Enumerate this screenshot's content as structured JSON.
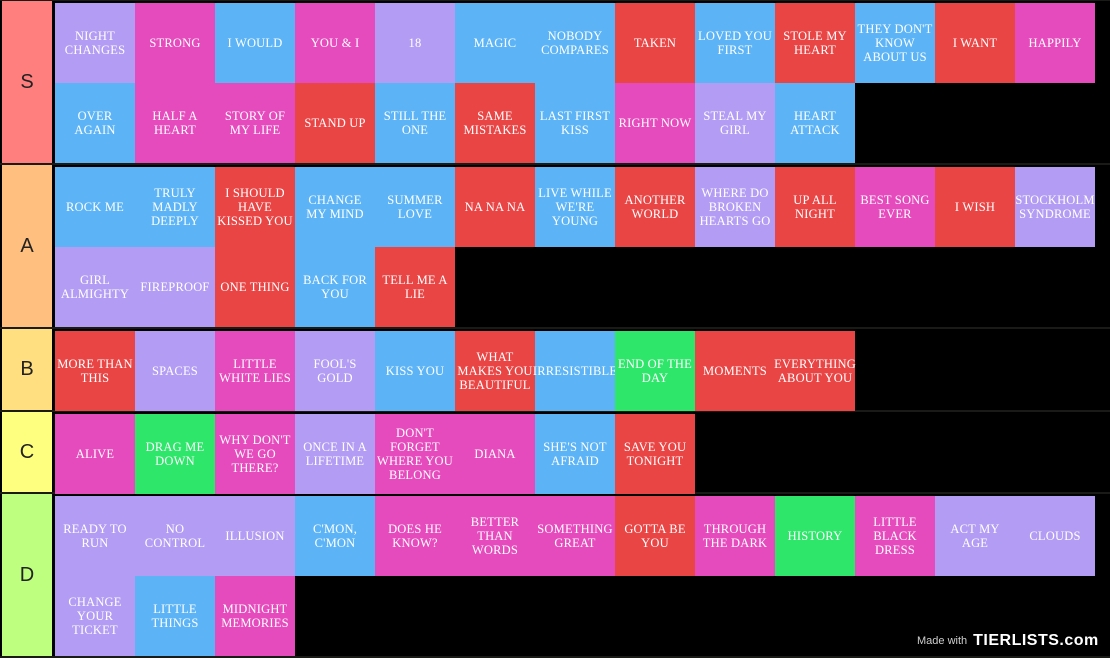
{
  "tiers": [
    {
      "label": "S",
      "color": "#ff7f7f",
      "items": [
        {
          "label": "NIGHT CHANGES",
          "color": "purple"
        },
        {
          "label": "STRONG",
          "color": "pink"
        },
        {
          "label": "I WOULD",
          "color": "blue"
        },
        {
          "label": "YOU & I",
          "color": "pink"
        },
        {
          "label": "18",
          "color": "purple"
        },
        {
          "label": "MAGIC",
          "color": "blue"
        },
        {
          "label": "NOBODY COMPARES",
          "color": "blue"
        },
        {
          "label": "TAKEN",
          "color": "red"
        },
        {
          "label": "LOVED YOU FIRST",
          "color": "blue"
        },
        {
          "label": "STOLE MY HEART",
          "color": "red"
        },
        {
          "label": "THEY DON'T KNOW ABOUT US",
          "color": "blue"
        },
        {
          "label": "I WANT",
          "color": "red"
        },
        {
          "label": "HAPPILY",
          "color": "pink"
        },
        {
          "label": "OVER AGAIN",
          "color": "blue"
        },
        {
          "label": "HALF A HEART",
          "color": "pink"
        },
        {
          "label": "STORY OF MY LIFE",
          "color": "pink"
        },
        {
          "label": "STAND UP",
          "color": "red"
        },
        {
          "label": "STILL THE ONE",
          "color": "blue"
        },
        {
          "label": "SAME MISTAKES",
          "color": "red"
        },
        {
          "label": "LAST FIRST KISS",
          "color": "blue"
        },
        {
          "label": "RIGHT NOW",
          "color": "pink"
        },
        {
          "label": "STEAL MY GIRL",
          "color": "purple"
        },
        {
          "label": "HEART ATTACK",
          "color": "blue"
        }
      ]
    },
    {
      "label": "A",
      "color": "#ffbf7f",
      "items": [
        {
          "label": "ROCK ME",
          "color": "blue"
        },
        {
          "label": "TRULY MADLY DEEPLY",
          "color": "blue"
        },
        {
          "label": "I SHOULD HAVE KISSED YOU",
          "color": "red"
        },
        {
          "label": "CHANGE MY MIND",
          "color": "blue"
        },
        {
          "label": "SUMMER LOVE",
          "color": "blue"
        },
        {
          "label": "NA NA NA",
          "color": "red"
        },
        {
          "label": "LIVE WHILE WE'RE YOUNG",
          "color": "blue"
        },
        {
          "label": "ANOTHER WORLD",
          "color": "red"
        },
        {
          "label": "WHERE DO BROKEN HEARTS GO",
          "color": "purple"
        },
        {
          "label": "UP ALL NIGHT",
          "color": "red"
        },
        {
          "label": "BEST SONG EVER",
          "color": "pink"
        },
        {
          "label": "I WISH",
          "color": "red"
        },
        {
          "label": "STOCKHOLM SYNDROME",
          "color": "purple"
        },
        {
          "label": "GIRL ALMIGHTY",
          "color": "purple"
        },
        {
          "label": "FIREPROOF",
          "color": "purple"
        },
        {
          "label": "ONE THING",
          "color": "red"
        },
        {
          "label": "BACK FOR YOU",
          "color": "blue"
        },
        {
          "label": "TELL ME A LIE",
          "color": "red"
        }
      ]
    },
    {
      "label": "B",
      "color": "#ffdf7f",
      "items": [
        {
          "label": "MORE THAN THIS",
          "color": "red"
        },
        {
          "label": "SPACES",
          "color": "purple"
        },
        {
          "label": "LITTLE WHITE LIES",
          "color": "pink"
        },
        {
          "label": "FOOL'S GOLD",
          "color": "purple"
        },
        {
          "label": "KISS YOU",
          "color": "blue"
        },
        {
          "label": "WHAT MAKES YOU BEAUTIFUL",
          "color": "red"
        },
        {
          "label": "IRRESISTIBLE",
          "color": "blue"
        },
        {
          "label": "END OF THE DAY",
          "color": "green"
        },
        {
          "label": "MOMENTS",
          "color": "red"
        },
        {
          "label": "EVERYTHING ABOUT YOU",
          "color": "red"
        }
      ]
    },
    {
      "label": "C",
      "color": "#ffff7f",
      "items": [
        {
          "label": "ALIVE",
          "color": "pink"
        },
        {
          "label": "DRAG ME DOWN",
          "color": "green"
        },
        {
          "label": "WHY DON'T WE GO THERE?",
          "color": "pink"
        },
        {
          "label": "ONCE IN A LIFETIME",
          "color": "purple"
        },
        {
          "label": "DON'T FORGET WHERE YOU BELONG",
          "color": "pink"
        },
        {
          "label": "DIANA",
          "color": "pink"
        },
        {
          "label": "SHE'S NOT AFRAID",
          "color": "blue"
        },
        {
          "label": "SAVE YOU TONIGHT",
          "color": "red"
        }
      ]
    },
    {
      "label": "D",
      "color": "#bfff7f",
      "items": [
        {
          "label": "READY TO RUN",
          "color": "purple"
        },
        {
          "label": "NO CONTROL",
          "color": "purple"
        },
        {
          "label": "ILLUSION",
          "color": "purple"
        },
        {
          "label": "C'MON, C'MON",
          "color": "blue"
        },
        {
          "label": "DOES HE KNOW?",
          "color": "pink"
        },
        {
          "label": "BETTER THAN WORDS",
          "color": "pink"
        },
        {
          "label": "SOMETHING GREAT",
          "color": "pink"
        },
        {
          "label": "GOTTA BE YOU",
          "color": "red"
        },
        {
          "label": "THROUGH THE DARK",
          "color": "pink"
        },
        {
          "label": "HISTORY",
          "color": "green"
        },
        {
          "label": "LITTLE BLACK DRESS",
          "color": "pink"
        },
        {
          "label": "ACT MY AGE",
          "color": "purple"
        },
        {
          "label": "CLOUDS",
          "color": "purple"
        },
        {
          "label": "CHANGE YOUR TICKET",
          "color": "purple"
        },
        {
          "label": "LITTLE THINGS",
          "color": "blue"
        },
        {
          "label": "MIDNIGHT MEMORIES",
          "color": "pink"
        }
      ]
    }
  ],
  "watermark": {
    "made_with": "Made with",
    "brand": "TIERLISTS.com"
  }
}
